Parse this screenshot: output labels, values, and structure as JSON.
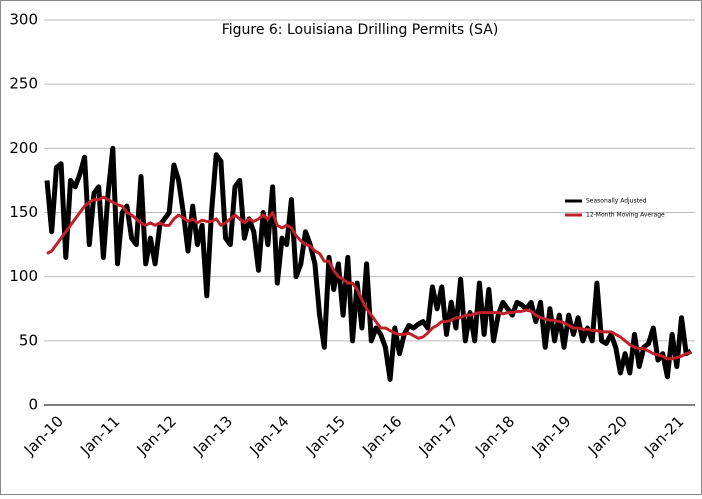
{
  "chart_data": {
    "type": "line",
    "title": "Figure 6: Louisiana Drilling Permits (SA)",
    "categories": [
      "Jan-10",
      null,
      null,
      null,
      null,
      null,
      null,
      null,
      null,
      null,
      null,
      null,
      "Jan-11",
      null,
      null,
      null,
      null,
      null,
      null,
      null,
      null,
      null,
      null,
      null,
      "Jan-12",
      null,
      null,
      null,
      null,
      null,
      null,
      null,
      null,
      null,
      null,
      null,
      "Jan-13",
      null,
      null,
      null,
      null,
      null,
      null,
      null,
      null,
      null,
      null,
      null,
      "Jan-14",
      null,
      null,
      null,
      null,
      null,
      null,
      null,
      null,
      null,
      null,
      null,
      "Jan-15",
      null,
      null,
      null,
      null,
      null,
      null,
      null,
      null,
      null,
      null,
      null,
      "Jan-16",
      null,
      null,
      null,
      null,
      null,
      null,
      null,
      null,
      null,
      null,
      null,
      "Jan-17",
      null,
      null,
      null,
      null,
      null,
      null,
      null,
      null,
      null,
      null,
      null,
      "Jan-18",
      null,
      null,
      null,
      null,
      null,
      null,
      null,
      null,
      null,
      null,
      null,
      "Jan-19",
      null,
      null,
      null,
      null,
      null,
      null,
      null,
      null,
      null,
      null,
      null,
      "Jan-20",
      null,
      null,
      null,
      null,
      null,
      null,
      null,
      null,
      null,
      null,
      null,
      "Jan-21",
      null,
      null,
      null,
      null,
      null
    ],
    "series": [
      {
        "name": "Seasonally Adjusted",
        "color": "#000000",
        "width": 5,
        "values": [
          175,
          135,
          185,
          188,
          115,
          175,
          170,
          180,
          193,
          125,
          165,
          170,
          115,
          165,
          200,
          110,
          150,
          155,
          130,
          125,
          178,
          110,
          130,
          110,
          140,
          145,
          150,
          187,
          175,
          150,
          120,
          155,
          125,
          140,
          85,
          150,
          195,
          190,
          130,
          125,
          170,
          175,
          130,
          145,
          135,
          105,
          150,
          125,
          170,
          95,
          130,
          125,
          160,
          100,
          110,
          135,
          125,
          110,
          70,
          45,
          115,
          90,
          110,
          70,
          115,
          50,
          95,
          60,
          110,
          50,
          60,
          55,
          45,
          20,
          60,
          40,
          55,
          62,
          60,
          63,
          65,
          60,
          92,
          75,
          92,
          55,
          80,
          60,
          98,
          50,
          72,
          50,
          95,
          55,
          90,
          50,
          70,
          80,
          75,
          70,
          80,
          78,
          75,
          80,
          65,
          80,
          45,
          75,
          50,
          70,
          45,
          70,
          55,
          68,
          50,
          60,
          50,
          95,
          50,
          48,
          55,
          45,
          25,
          40,
          25,
          55,
          30,
          45,
          48,
          60,
          35,
          40,
          22,
          55,
          30,
          68,
          40,
          42
        ]
      },
      {
        "name": "12-Month Moving Average",
        "color": "#c0202a",
        "width": 3,
        "values": [
          118,
          120,
          125,
          130,
          135,
          140,
          145,
          150,
          155,
          158,
          160,
          160,
          162,
          160,
          158,
          156,
          155,
          150,
          148,
          145,
          142,
          140,
          142,
          140,
          142,
          140,
          140,
          145,
          148,
          146,
          143,
          145,
          142,
          144,
          143,
          143,
          145,
          140,
          142,
          145,
          148,
          145,
          142,
          145,
          143,
          145,
          148,
          145,
          150,
          140,
          138,
          140,
          138,
          132,
          128,
          125,
          124,
          120,
          118,
          112,
          112,
          105,
          100,
          98,
          95,
          95,
          90,
          82,
          75,
          70,
          65,
          60,
          60,
          58,
          56,
          55,
          55,
          56,
          54,
          52,
          53,
          56,
          60,
          62,
          65,
          65,
          66,
          68,
          68,
          70,
          70,
          71,
          72,
          72,
          72,
          72,
          72,
          71,
          72,
          72,
          73,
          73,
          74,
          73,
          70,
          68,
          67,
          66,
          66,
          65,
          64,
          62,
          60,
          60,
          59,
          59,
          58,
          58,
          57,
          57,
          57,
          55,
          53,
          50,
          47,
          45,
          44,
          44,
          42,
          40,
          39,
          38,
          36,
          36,
          37,
          38,
          40,
          41
        ]
      }
    ],
    "ylim": [
      0,
      300
    ],
    "yticks": [
      0,
      50,
      100,
      150,
      200,
      250,
      300
    ],
    "grid": true
  }
}
